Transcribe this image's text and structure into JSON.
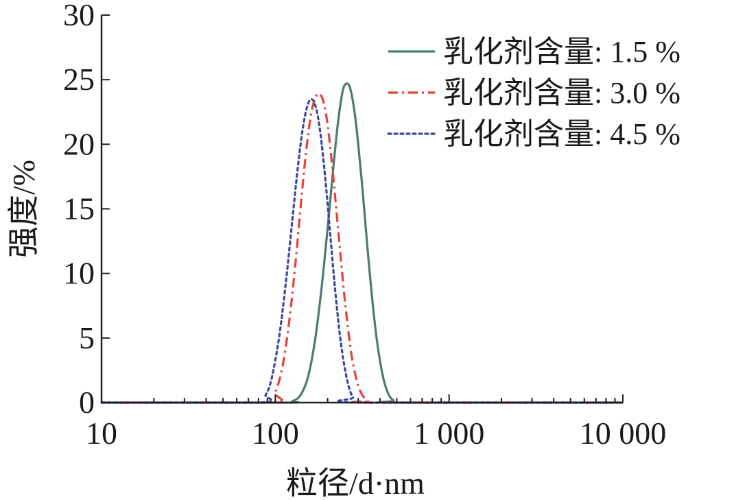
{
  "chart_data": {
    "type": "line",
    "x_scale": "log",
    "xlabel": "粒径/d·nm",
    "ylabel": "强度/%",
    "xlim": [
      10,
      10000
    ],
    "ylim": [
      0,
      30
    ],
    "x_ticks": [
      {
        "value": 10,
        "label": "10"
      },
      {
        "value": 100,
        "label": "100"
      },
      {
        "value": 1000,
        "label": "1 000"
      },
      {
        "value": 10000,
        "label": "10 000"
      }
    ],
    "y_ticks": [
      {
        "value": 0,
        "label": "0"
      },
      {
        "value": 5,
        "label": "5"
      },
      {
        "value": 10,
        "label": "10"
      },
      {
        "value": 15,
        "label": "15"
      },
      {
        "value": 20,
        "label": "20"
      },
      {
        "value": 25,
        "label": "25"
      },
      {
        "value": 30,
        "label": "30"
      }
    ],
    "grid": false,
    "legend_position": "top-right",
    "series": [
      {
        "name": "乳化剂含量: 1.5 %",
        "color": "#4a7b71",
        "dash": "solid",
        "x": [
          10,
          110,
          125,
          140,
          155,
          170,
          185,
          200,
          215,
          230,
          245,
          258,
          270,
          285,
          300,
          320,
          340,
          365,
          390,
          420,
          450,
          480,
          510,
          10000
        ],
        "y": [
          0,
          0,
          0.1,
          0.6,
          2.1,
          5.0,
          9.0,
          13.5,
          18.0,
          21.8,
          24.2,
          24.7,
          24.3,
          22.6,
          20.0,
          16.0,
          11.8,
          7.4,
          4.2,
          1.8,
          0.6,
          0.15,
          0,
          0
        ]
      },
      {
        "name": "乳化剂含量: 3.0 %",
        "color": "#e8403a",
        "dash": "dashdot",
        "x": [
          10,
          90,
          100,
          110,
          120,
          130,
          140,
          150,
          160,
          170,
          180,
          190,
          200,
          210,
          220,
          235,
          250,
          265,
          280,
          300,
          320,
          340,
          360,
          10000
        ],
        "y": [
          0,
          0,
          0.8,
          2.8,
          6.2,
          10.5,
          15.2,
          19.3,
          22.2,
          23.6,
          23.9,
          23.2,
          21.5,
          19.0,
          16.2,
          12.0,
          8.2,
          5.2,
          3.0,
          1.3,
          0.5,
          0.15,
          0,
          0
        ]
      },
      {
        "name": "乳化剂含量: 4.5 %",
        "color": "#3d47a0",
        "dash": "dotted",
        "x": [
          10,
          80,
          88,
          95,
          105,
          115,
          125,
          135,
          145,
          155,
          165,
          175,
          185,
          195,
          205,
          220,
          235,
          250,
          265,
          280,
          300,
          10000
        ],
        "y": [
          0,
          0,
          0.6,
          1.8,
          5.0,
          9.3,
          14.0,
          18.3,
          21.5,
          23.2,
          23.4,
          22.3,
          20.0,
          17.0,
          13.7,
          9.0,
          5.3,
          2.8,
          1.2,
          0.4,
          0,
          0
        ]
      }
    ]
  }
}
